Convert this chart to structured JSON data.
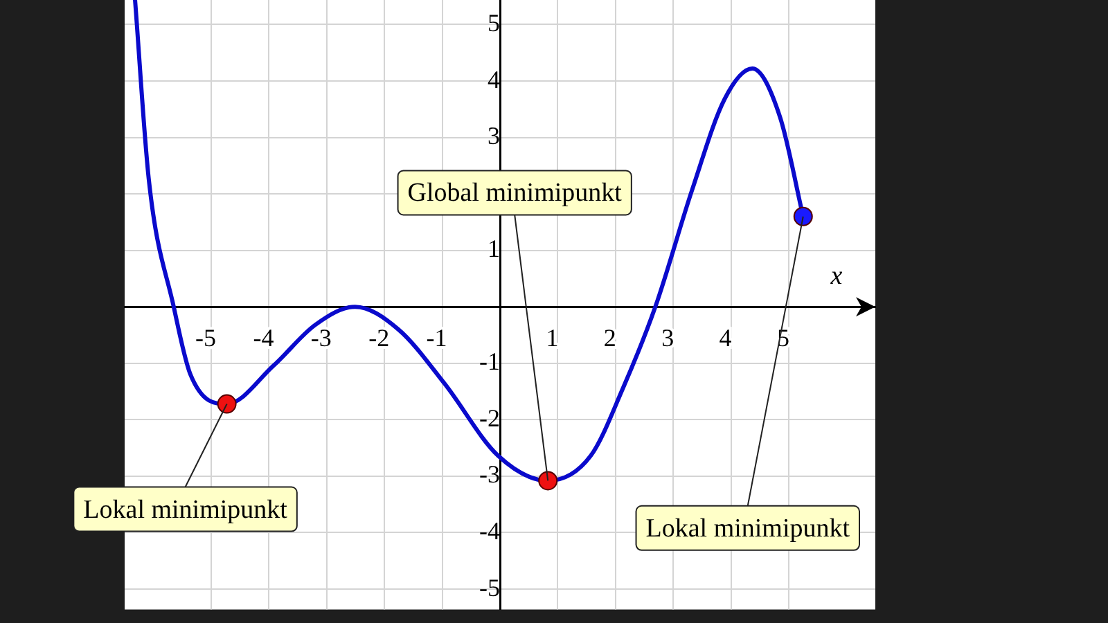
{
  "chart_data": {
    "type": "line",
    "xlabel": "x",
    "xlim": [
      -6.5,
      6.5
    ],
    "ylim": [
      -5.36,
      5.44
    ],
    "xticks": [
      -5,
      -4,
      -3,
      -2,
      -1,
      1,
      2,
      3,
      4,
      5
    ],
    "yticks": [
      -5,
      -4,
      -3,
      -2,
      -1,
      1,
      {
        "value": 2,
        "label": null
      },
      3,
      4,
      5
    ],
    "grid": true,
    "legend": false,
    "series": [
      {
        "type": "line",
        "color": "#0a0acc",
        "marker": "none",
        "line_style": "solid",
        "x": [
          -6.32,
          -6.08,
          -5.65,
          -5.36,
          -4.73,
          -3.92,
          -3.2,
          -2.51,
          -1.76,
          -0.96,
          -0.03,
          0.83,
          1.57,
          2.13,
          2.69,
          3.33,
          3.89,
          4.37,
          4.85,
          5.25
        ],
        "values": [
          5.44,
          2.24,
          0,
          -1.2,
          -1.72,
          -1.04,
          -0.32,
          0,
          -0.4,
          -1.36,
          -2.64,
          -3.08,
          -2.64,
          -1.44,
          0,
          2.08,
          3.68,
          4.22,
          3.36,
          1.6
        ]
      },
      {
        "type": "scatter",
        "marker": "circle",
        "x": [
          -4.73,
          0.83,
          5.25
        ],
        "values": [
          -1.72,
          -3.08,
          1.6
        ],
        "colors": [
          "#ee1111",
          "#ee1111",
          "#1a1aff"
        ]
      }
    ],
    "annotations": [
      {
        "text": "Lokal minimipunkt",
        "x": -4.73,
        "y": -1.72
      },
      {
        "text": "Global minimipunkt",
        "x": 0.83,
        "y": -3.08
      },
      {
        "text": "Lokal minimipunkt",
        "x": 5.25,
        "y": 1.6
      }
    ]
  }
}
